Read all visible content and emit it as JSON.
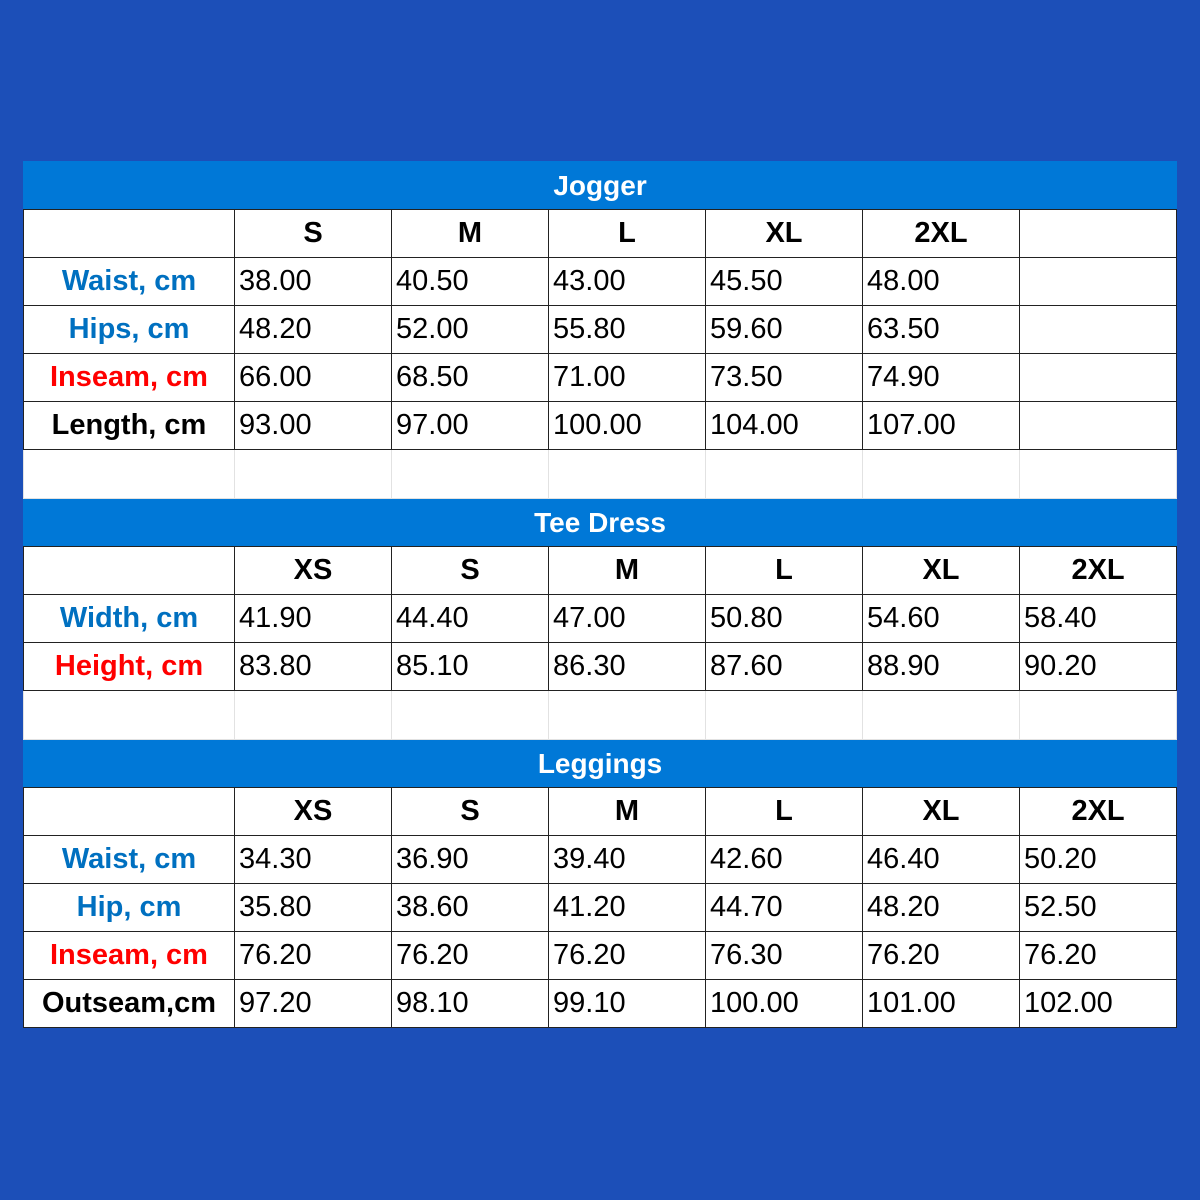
{
  "colors": {
    "background": "#1c4fb8",
    "header": "#0078d7",
    "blue_label": "#0070c0",
    "red_label": "#ff0000",
    "black_label": "#000000"
  },
  "tables": [
    {
      "title": "Jogger",
      "sizes": [
        "S",
        "M",
        "L",
        "XL",
        "2XL",
        ""
      ],
      "rows": [
        {
          "label": "Waist, cm",
          "color": "#0070c0",
          "values": [
            "38.00",
            "40.50",
            "43.00",
            "45.50",
            "48.00",
            ""
          ]
        },
        {
          "label": "Hips, cm",
          "color": "#0070c0",
          "values": [
            "48.20",
            "52.00",
            "55.80",
            "59.60",
            "63.50",
            ""
          ]
        },
        {
          "label": "Inseam, cm",
          "color": "#ff0000",
          "values": [
            "66.00",
            "68.50",
            "71.00",
            "73.50",
            "74.90",
            ""
          ]
        },
        {
          "label": "Length, cm",
          "color": "#000000",
          "values": [
            "93.00",
            "97.00",
            "100.00",
            "104.00",
            "107.00",
            ""
          ]
        }
      ]
    },
    {
      "title": "Tee Dress",
      "sizes": [
        "XS",
        "S",
        "M",
        "L",
        "XL",
        "2XL"
      ],
      "rows": [
        {
          "label": "Width, cm",
          "color": "#0070c0",
          "values": [
            "41.90",
            "44.40",
            "47.00",
            "50.80",
            "54.60",
            "58.40"
          ]
        },
        {
          "label": "Height, cm",
          "color": "#ff0000",
          "values": [
            "83.80",
            "85.10",
            "86.30",
            "87.60",
            "88.90",
            "90.20"
          ]
        }
      ]
    },
    {
      "title": "Leggings",
      "sizes": [
        "XS",
        "S",
        "M",
        "L",
        "XL",
        "2XL"
      ],
      "rows": [
        {
          "label": "Waist, cm",
          "color": "#0070c0",
          "values": [
            "34.30",
            "36.90",
            "39.40",
            "42.60",
            "46.40",
            "50.20"
          ]
        },
        {
          "label": "Hip, cm",
          "color": "#0070c0",
          "values": [
            "35.80",
            "38.60",
            "41.20",
            "44.70",
            "48.20",
            "52.50"
          ]
        },
        {
          "label": "Inseam, cm",
          "color": "#ff0000",
          "values": [
            "76.20",
            "76.20",
            "76.20",
            "76.30",
            "76.20",
            "76.20"
          ]
        },
        {
          "label": "Outseam,cm",
          "color": "#000000",
          "values": [
            "97.20",
            "98.10",
            "99.10",
            "100.00",
            "101.00",
            "102.00"
          ]
        }
      ]
    }
  ]
}
